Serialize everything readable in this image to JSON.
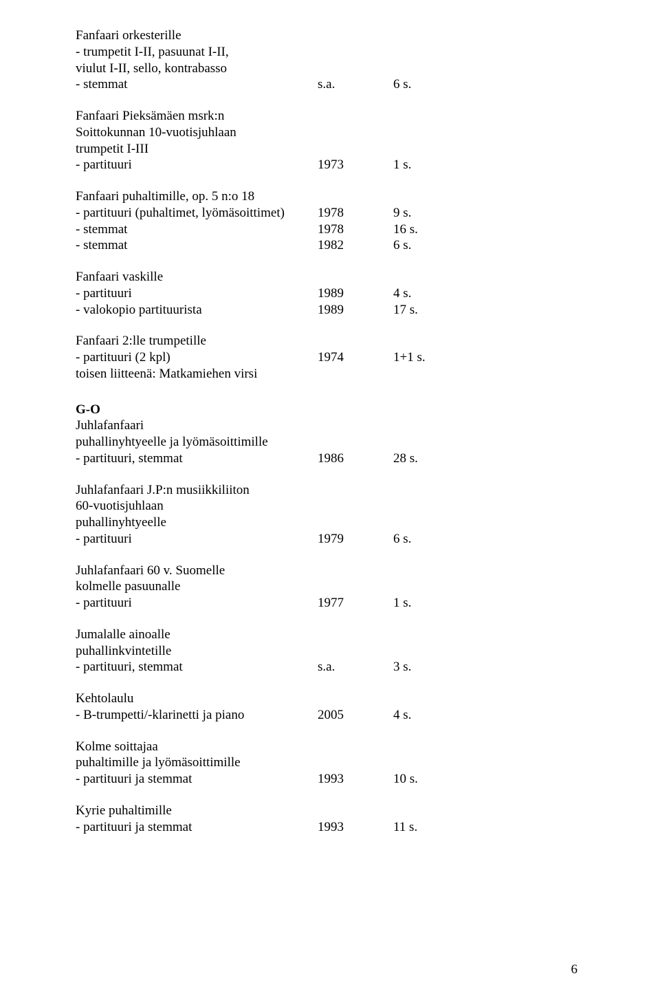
{
  "entries": [
    {
      "title_lines": [
        "Fanfaari orkesterille",
        "- trumpetit I-II, pasuunat I-II,",
        "viulut I-II, sello, kontrabasso"
      ],
      "rows": [
        {
          "label": "- stemmat",
          "year": "s.a.",
          "pages": "6 s."
        }
      ]
    },
    {
      "title_lines": [
        "Fanfaari Pieksämäen msrk:n",
        "Soittokunnan 10-vuotisjuhlaan",
        "trumpetit I-III"
      ],
      "rows": [
        {
          "label": "- partituuri",
          "year": "1973",
          "pages": "1 s."
        }
      ]
    },
    {
      "title_lines": [
        "Fanfaari puhaltimille, op. 5 n:o 18"
      ],
      "rows": [
        {
          "label": "- partituuri (puhaltimet, lyömäsoittimet)",
          "year": "1978",
          "pages": "9 s."
        },
        {
          "label": "- stemmat",
          "year": "1978",
          "pages": "16 s."
        },
        {
          "label": "- stemmat",
          "year": "1982",
          "pages": "6 s."
        }
      ]
    },
    {
      "title_lines": [
        "Fanfaari vaskille"
      ],
      "rows": [
        {
          "label": "- partituuri",
          "year": "1989",
          "pages": "4 s."
        },
        {
          "label": "- valokopio partituurista",
          "year": "1989",
          "pages": "17 s."
        }
      ]
    },
    {
      "title_lines": [
        "Fanfaari 2:lle trumpetille"
      ],
      "rows": [
        {
          "label": "- partituuri (2 kpl)",
          "year": "1974",
          "pages": "1+1 s."
        }
      ],
      "trailing_lines": [
        "toisen liitteenä: Matkamiehen virsi"
      ]
    }
  ],
  "section_heading": "G-O",
  "entries_after": [
    {
      "title_lines": [
        "Juhlafanfaari",
        "puhallinyhtyeelle ja lyömäsoittimille"
      ],
      "rows": [
        {
          "label": "- partituuri, stemmat",
          "year": "1986",
          "pages": "28 s."
        }
      ]
    },
    {
      "title_lines": [
        "Juhlafanfaari J.P:n musiikkiliiton",
        "60-vuotisjuhlaan",
        "puhallinyhtyeelle"
      ],
      "rows": [
        {
          "label": "- partituuri",
          "year": "1979",
          "pages": "6 s."
        }
      ]
    },
    {
      "title_lines": [
        "Juhlafanfaari 60 v. Suomelle",
        "kolmelle pasuunalle"
      ],
      "rows": [
        {
          "label": "- partituuri",
          "year": "1977",
          "pages": "1 s."
        }
      ]
    },
    {
      "title_lines": [
        "Jumalalle ainoalle",
        "puhallinkvintetille"
      ],
      "rows": [
        {
          "label": "- partituuri, stemmat",
          "year": "s.a.",
          "pages": "3 s."
        }
      ]
    },
    {
      "title_lines": [
        "Kehtolaulu"
      ],
      "rows": [
        {
          "label": "- B-trumpetti/-klarinetti ja piano",
          "year": "2005",
          "pages": "4 s."
        }
      ]
    },
    {
      "title_lines": [
        "Kolme soittajaa",
        "puhaltimille ja lyömäsoittimille"
      ],
      "rows": [
        {
          "label": "- partituuri ja stemmat",
          "year": "1993",
          "pages": "10 s."
        }
      ]
    },
    {
      "title_lines": [
        "Kyrie puhaltimille"
      ],
      "rows": [
        {
          "label": "- partituuri ja stemmat",
          "year": "1993",
          "pages": "11 s."
        }
      ]
    }
  ],
  "page_number": "6"
}
